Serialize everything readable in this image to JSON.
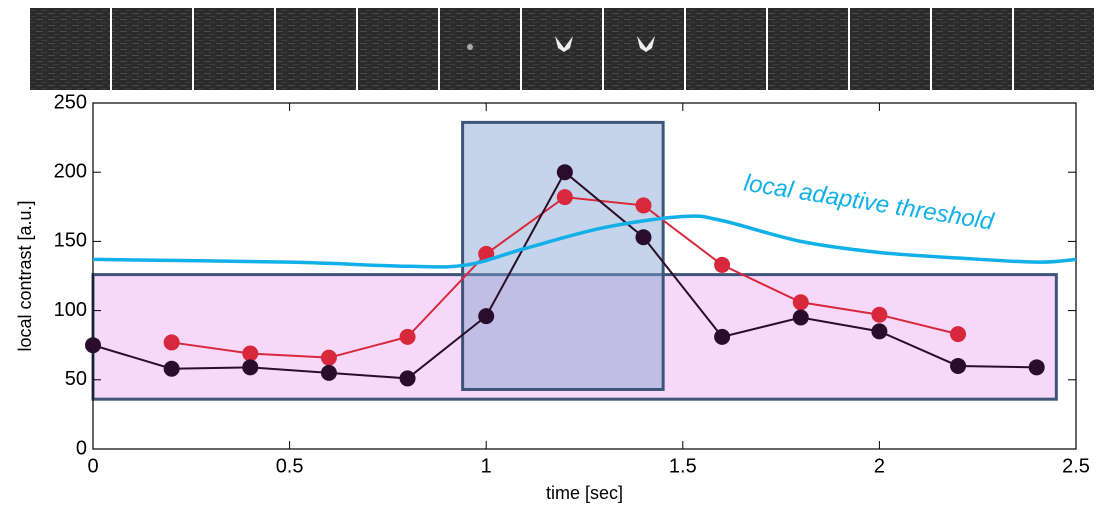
{
  "chart_data": {
    "type": "line",
    "xlabel": "time [sec]",
    "ylabel": "local contrast [a.u.]",
    "xlim": [
      0,
      2.5
    ],
    "xticks": [
      0,
      0.5,
      1,
      1.5,
      2,
      2.5
    ],
    "ylim": [
      0,
      250
    ],
    "yticks": [
      0,
      50,
      100,
      150,
      200,
      250
    ],
    "series": [
      {
        "color": "#d8283c",
        "x": [
          0.2,
          0.4,
          0.6,
          0.8,
          1.0,
          1.2,
          1.4,
          1.6,
          1.8,
          2.0,
          2.2
        ],
        "values": [
          77,
          69,
          66,
          81,
          141,
          182,
          176,
          133,
          106,
          97,
          83
        ]
      },
      {
        "color": "#2a0d2a",
        "x": [
          0,
          0.2,
          0.4,
          0.6,
          0.8,
          1.0,
          1.2,
          1.4,
          1.6,
          1.8,
          2.0,
          2.2,
          2.4
        ],
        "values": [
          75,
          58,
          59,
          55,
          51,
          96,
          200,
          153,
          81,
          95,
          85,
          60,
          59
        ]
      },
      {
        "name": "local adaptive threshold",
        "color": "#12b0e8",
        "x": [
          0,
          0.5,
          0.8,
          0.95,
          1.1,
          1.3,
          1.5,
          1.6,
          1.8,
          2.0,
          2.2,
          2.4,
          2.5
        ],
        "values": [
          137,
          135,
          132,
          133,
          145,
          160,
          168,
          165,
          150,
          142,
          138,
          135,
          137
        ]
      }
    ],
    "regions": [
      {
        "x": [
          0,
          2.45
        ],
        "y": [
          36,
          126
        ],
        "color": "#f0a8f0"
      },
      {
        "x": [
          0.94,
          1.45
        ],
        "y": [
          43,
          236
        ],
        "color": "#7f9fd0"
      }
    ]
  }
}
